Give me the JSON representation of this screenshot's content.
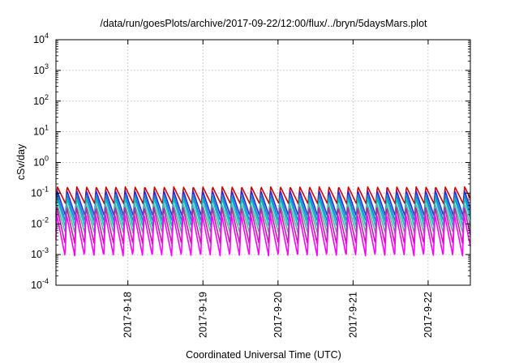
{
  "chart_data": {
    "type": "line",
    "title": "/data/run/goesPlots/archive/2017-09-22/12:00/flux/../bryn/5daysMars.plot",
    "xlabel": "Coordinated Universal Time (UTC)",
    "ylabel": "cSv/day",
    "yscale": "log",
    "ylim": [
      0.0001,
      10000
    ],
    "xlim": [
      "2017-09-17T01:00",
      "2017-09-22T13:30"
    ],
    "y_ticks": [
      {
        "base": "10",
        "exp": "-4"
      },
      {
        "base": "10",
        "exp": "-3"
      },
      {
        "base": "10",
        "exp": "-2"
      },
      {
        "base": "10",
        "exp": "-1"
      },
      {
        "base": "10",
        "exp": "0"
      },
      {
        "base": "10",
        "exp": "1"
      },
      {
        "base": "10",
        "exp": "2"
      },
      {
        "base": "10",
        "exp": "3"
      },
      {
        "base": "10",
        "exp": "4"
      }
    ],
    "x_ticks": [
      {
        "date": "2017-09-18",
        "label": "2017-9-18"
      },
      {
        "date": "2017-09-19",
        "label": "2017-9-19"
      },
      {
        "date": "2017-09-20",
        "label": "2017-9-20"
      },
      {
        "date": "2017-09-21",
        "label": "2017-9-21"
      },
      {
        "date": "2017-09-22",
        "label": "2017-9-22"
      }
    ],
    "grid": true,
    "cycle_hours": 3.1,
    "series": [
      {
        "color": "#cc0000",
        "peak": 0.16,
        "trough": 0.045
      },
      {
        "color": "#2b2bd6",
        "peak": 0.12,
        "trough": 0.018
      },
      {
        "color": "#1a7fd6",
        "peak": 0.09,
        "trough": 0.012
      },
      {
        "color": "#00c0c0",
        "peak": 0.07,
        "trough": 0.008
      },
      {
        "color": "#5ab0a0",
        "peak": 0.045,
        "trough": 0.005
      },
      {
        "color": "#c020a0",
        "peak": 0.035,
        "trough": 0.0022
      },
      {
        "color": "#ff00ff",
        "peak": 0.02,
        "trough": 0.0009
      }
    ]
  }
}
